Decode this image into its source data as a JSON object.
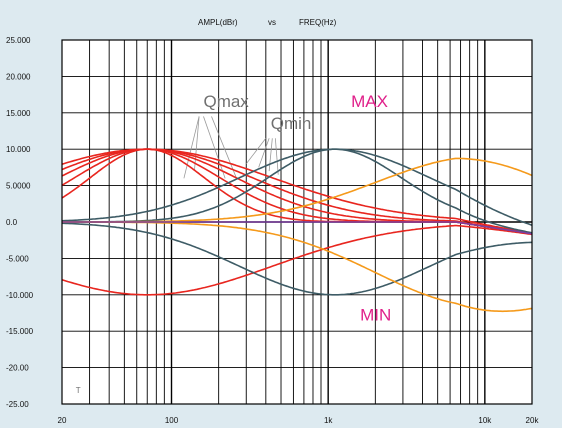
{
  "colors": {
    "background": "#ddeaf0",
    "plot_bg": "#ffffff",
    "grid": "#000000",
    "red": "#e8261f",
    "slate": "#3e5c66",
    "orange": "#f59a1b",
    "purple": "#7b3fa0",
    "annot_gray": "#707070",
    "annot_pink": "#e0208a"
  },
  "chart_data": {
    "type": "line",
    "title_left": "AMPL(dBr)",
    "title_mid": "vs",
    "title_right": "FREQ(Hz)",
    "x_scale": "log",
    "xlim": [
      20,
      20000
    ],
    "ylim": [
      -25,
      25
    ],
    "grid": true,
    "x_tick_labels": [
      {
        "value": 20,
        "label": "20"
      },
      {
        "value": 100,
        "label": "100"
      },
      {
        "value": 1000,
        "label": "1k"
      },
      {
        "value": 10000,
        "label": "10k"
      },
      {
        "value": 20000,
        "label": "20k"
      }
    ],
    "y_tick_labels": [
      {
        "value": 25,
        "label": "25.000"
      },
      {
        "value": 20,
        "label": "20.000"
      },
      {
        "value": 15,
        "label": "15.000"
      },
      {
        "value": 10,
        "label": "10.000"
      },
      {
        "value": 5,
        "label": "5.0000"
      },
      {
        "value": 0,
        "label": "0.0"
      },
      {
        "value": -5,
        "label": "-5.000"
      },
      {
        "value": -10,
        "label": "-10.000"
      },
      {
        "value": -15,
        "label": "-15.000"
      },
      {
        "value": -20,
        "label": "-20.00"
      },
      {
        "value": -25,
        "label": "-25.00"
      }
    ],
    "annotations": [
      {
        "text": "Qmax",
        "x": 160,
        "y": 15.8,
        "color": "annot_gray",
        "size": 17
      },
      {
        "text": "Qmin",
        "x": 430,
        "y": 12.8,
        "color": "annot_gray",
        "size": 17
      },
      {
        "text": "MAX",
        "x": 1400,
        "y": 15.8,
        "color": "annot_pink",
        "size": 17
      },
      {
        "text": "MIN",
        "x": 1600,
        "y": -13.5,
        "color": "annot_pink",
        "size": 17
      },
      {
        "text": "T",
        "x": 24.5,
        "y": -23.5,
        "color": "annot_gray",
        "size": 8
      }
    ],
    "series": [
      {
        "color": "red",
        "kind": "peak",
        "f0": 70,
        "gain": 10,
        "q": 0.7
      },
      {
        "color": "red",
        "kind": "peak",
        "f0": 70,
        "gain": 10,
        "q": 0.55
      },
      {
        "color": "red",
        "kind": "peak",
        "f0": 70,
        "gain": 10,
        "q": 0.45
      },
      {
        "color": "red",
        "kind": "peak",
        "f0": 70,
        "gain": 10,
        "q": 0.38
      },
      {
        "color": "red",
        "kind": "peak",
        "f0": 70,
        "gain": 10,
        "q": 0.32
      },
      {
        "color": "red",
        "kind": "peak",
        "f0": 70,
        "gain": -10,
        "q": 0.32
      },
      {
        "color": "slate",
        "kind": "peak",
        "f0": 1100,
        "gain": 10,
        "q": 0.6
      },
      {
        "color": "slate",
        "kind": "peak",
        "f0": 1100,
        "gain": 10,
        "q": 0.42
      },
      {
        "color": "slate",
        "kind": "peak",
        "f0": 1100,
        "gain": -10,
        "q": 0.42
      },
      {
        "color": "orange",
        "kind": "peak",
        "f0": 9500,
        "gain": 9,
        "q": 0.38
      },
      {
        "color": "orange",
        "kind": "peak",
        "f0": 9500,
        "gain": -11.5,
        "q": 0.38
      },
      {
        "color": "purple",
        "kind": "flat",
        "gain": 0
      }
    ],
    "q_leader_lines": [
      {
        "from": [
          150,
          14.5
        ],
        "to": [
          120,
          6
        ]
      },
      {
        "from": [
          150,
          14.5
        ],
        "to": [
          140,
          7
        ]
      },
      {
        "from": [
          160,
          14.5
        ],
        "to": [
          220,
          6
        ]
      },
      {
        "from": [
          180,
          14.5
        ],
        "to": [
          260,
          6
        ]
      },
      {
        "from": [
          400,
          11.5
        ],
        "to": [
          300,
          8
        ]
      },
      {
        "from": [
          420,
          11.5
        ],
        "to": [
          360,
          7.5
        ]
      },
      {
        "from": [
          440,
          11.5
        ],
        "to": [
          420,
          7
        ]
      },
      {
        "from": [
          460,
          11.5
        ],
        "to": [
          480,
          6.5
        ]
      }
    ]
  }
}
